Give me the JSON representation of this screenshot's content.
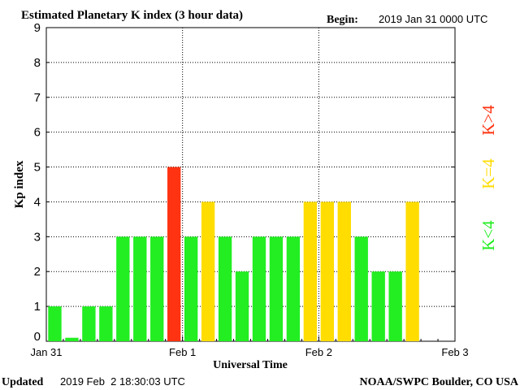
{
  "chart_data": {
    "type": "bar",
    "title": "Estimated Planetary K index (3 hour data)",
    "begin_label": "Begin:",
    "begin_value": "2019 Jan 31 0000 UTC",
    "xlabel": "Universal Time",
    "ylabel": "Kp index",
    "ylim": [
      0,
      9
    ],
    "y_ticks": [
      "0",
      "1",
      "2",
      "3",
      "4",
      "5",
      "6",
      "7",
      "8",
      "9"
    ],
    "x_ticks": [
      "Jan 31",
      "Feb 1",
      "Feb 2",
      "Feb 3"
    ],
    "grid": true,
    "values": [
      1,
      0.1,
      1,
      1,
      3,
      3,
      3,
      5,
      3,
      4,
      3,
      2,
      3,
      3,
      3,
      4,
      4,
      4,
      3,
      2,
      2,
      4
    ],
    "legend": {
      "placement": "right",
      "entries": [
        {
          "label": "K<4",
          "color": "#22ee22"
        },
        {
          "label": "K=4",
          "color": "#ffdd00"
        },
        {
          "label": "K>4",
          "color": "#ff3311"
        }
      ]
    },
    "colors": {
      "below": "#22ee22",
      "equal": "#ffdd00",
      "above": "#ff3311"
    }
  },
  "footer": {
    "updated_label": "Updated",
    "updated_value": "2019 Feb  2 18:30:03 UTC",
    "credit": "NOAA/SWPC Boulder, CO USA"
  }
}
